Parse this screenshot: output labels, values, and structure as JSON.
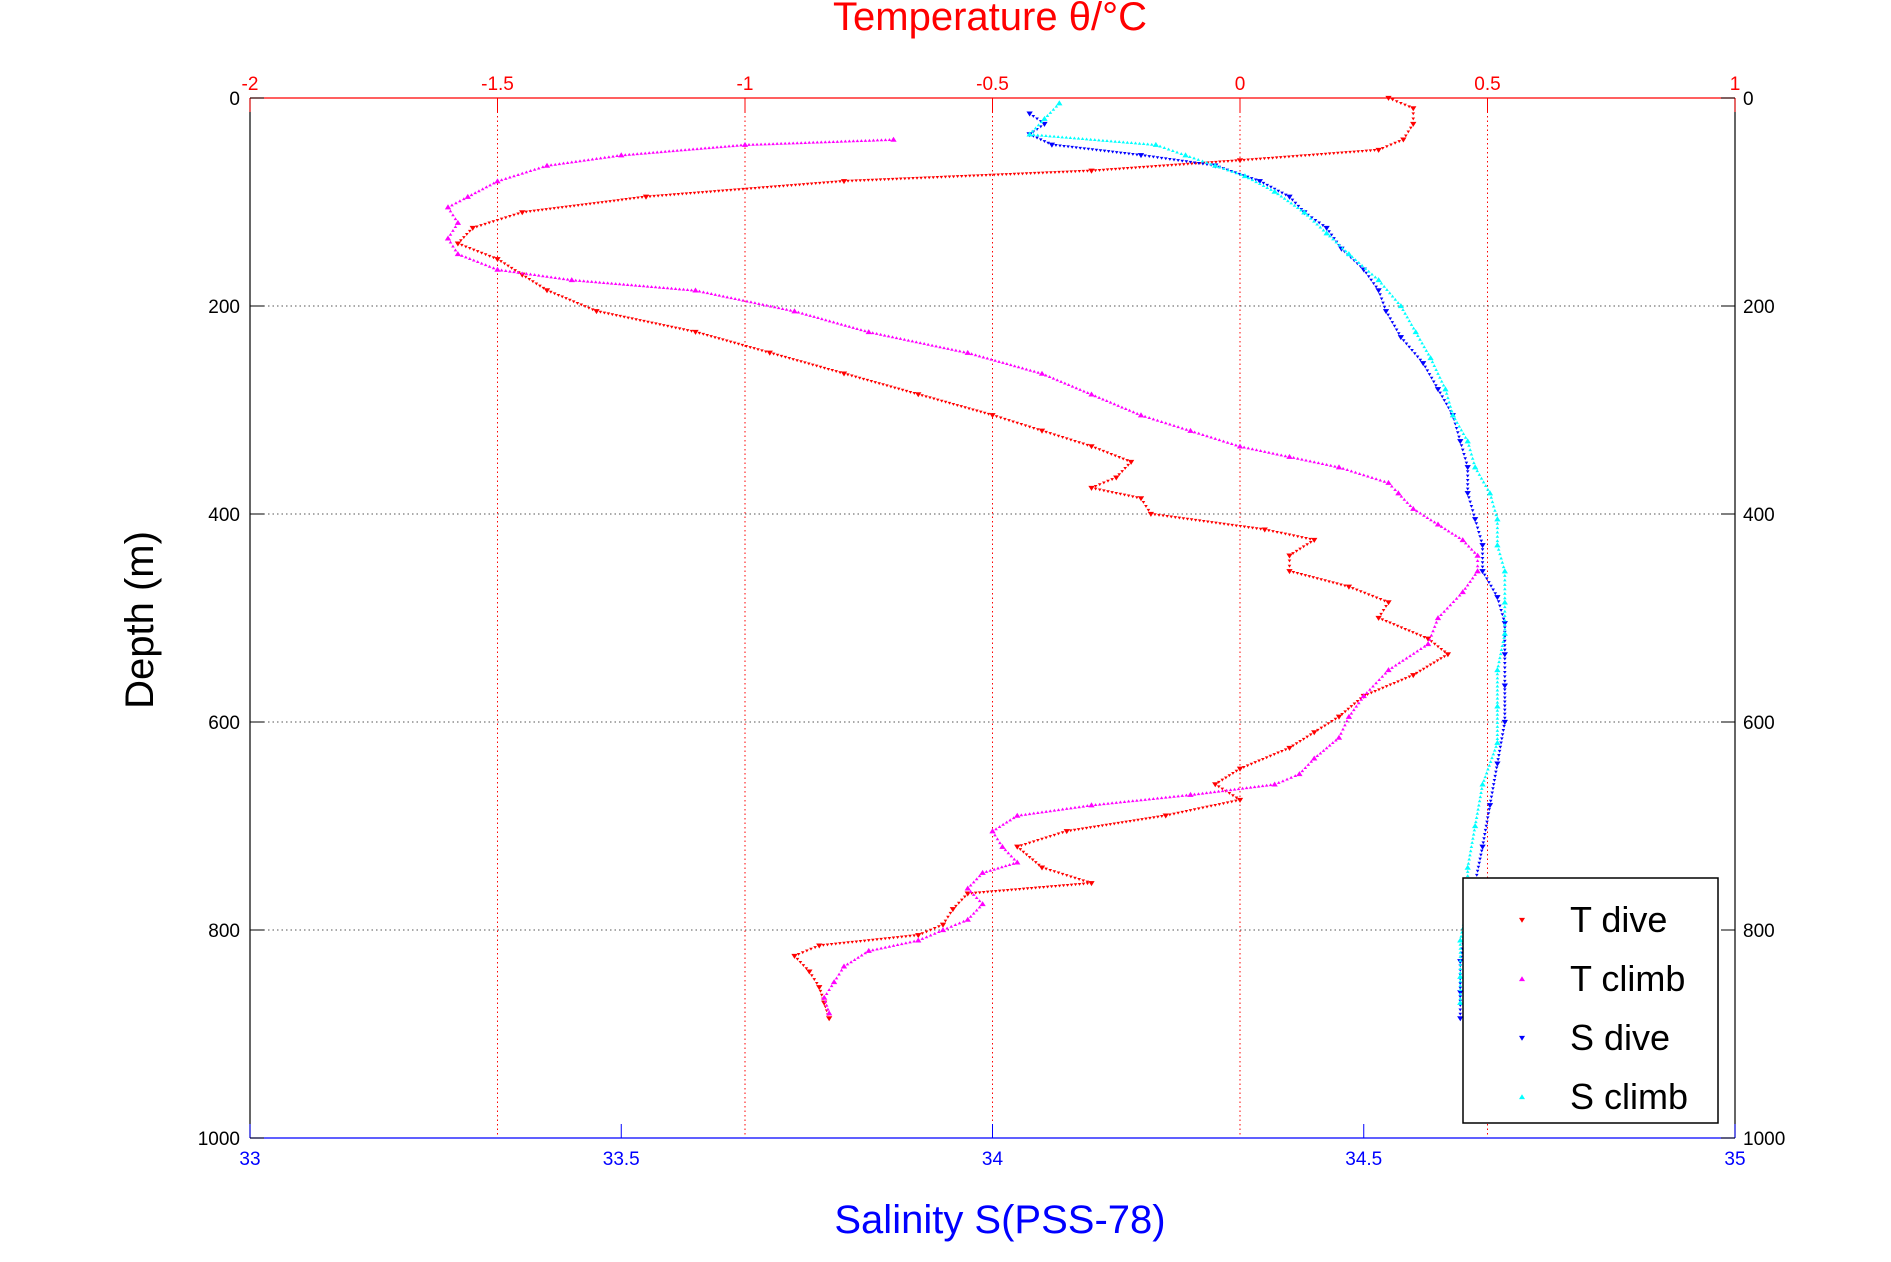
{
  "colors": {
    "temperature_axis": "#ff0000",
    "salinity_axis": "#0000ff",
    "depth_axis": "#000000",
    "t_dive": "#ff0000",
    "t_climb": "#ff00ff",
    "s_dive": "#0000ff",
    "s_climb": "#00ffff",
    "grid": "#c0c0c0"
  },
  "chart_data": {
    "type": "scatter",
    "title": "Temperature θ/°C",
    "xlabel": "Salinity S(PSS-78)",
    "ylabel": "Depth (m)",
    "top_axis": {
      "label": "Temperature θ/°C",
      "range": [
        -2,
        1
      ],
      "ticks": [
        "-2",
        "-1.5",
        "-1",
        "-0.5",
        "0",
        "0.5",
        "1"
      ]
    },
    "bottom_axis": {
      "label": "Salinity S(PSS-78)",
      "range": [
        33,
        35
      ],
      "ticks": [
        "33",
        "33.5",
        "34",
        "34.5",
        "35"
      ]
    },
    "y_axis": {
      "label": "Depth (m)",
      "range": [
        0,
        1000
      ],
      "inverted": true,
      "ticks": [
        "0",
        "200",
        "400",
        "600",
        "800",
        "1000"
      ]
    },
    "grid": true,
    "legend_position": "bottom-right",
    "legend": [
      "T dive",
      "T climb",
      "S dive",
      "S climb"
    ],
    "series": [
      {
        "name": "T dive",
        "axis": "temperature",
        "color": "#ff0000",
        "marker": "triangle-down",
        "points": [
          [
            0.3,
            0
          ],
          [
            0.35,
            10
          ],
          [
            0.35,
            25
          ],
          [
            0.33,
            40
          ],
          [
            0.28,
            50
          ],
          [
            0.0,
            60
          ],
          [
            -0.3,
            70
          ],
          [
            -0.8,
            80
          ],
          [
            -1.2,
            95
          ],
          [
            -1.45,
            110
          ],
          [
            -1.55,
            125
          ],
          [
            -1.58,
            140
          ],
          [
            -1.5,
            155
          ],
          [
            -1.45,
            170
          ],
          [
            -1.4,
            185
          ],
          [
            -1.3,
            205
          ],
          [
            -1.1,
            225
          ],
          [
            -0.95,
            245
          ],
          [
            -0.8,
            265
          ],
          [
            -0.65,
            285
          ],
          [
            -0.5,
            305
          ],
          [
            -0.4,
            320
          ],
          [
            -0.3,
            335
          ],
          [
            -0.22,
            350
          ],
          [
            -0.25,
            365
          ],
          [
            -0.3,
            375
          ],
          [
            -0.2,
            385
          ],
          [
            -0.18,
            400
          ],
          [
            0.05,
            415
          ],
          [
            0.15,
            425
          ],
          [
            0.1,
            440
          ],
          [
            0.1,
            455
          ],
          [
            0.22,
            470
          ],
          [
            0.3,
            485
          ],
          [
            0.28,
            500
          ],
          [
            0.38,
            520
          ],
          [
            0.42,
            535
          ],
          [
            0.35,
            555
          ],
          [
            0.25,
            575
          ],
          [
            0.2,
            595
          ],
          [
            0.15,
            610
          ],
          [
            0.1,
            625
          ],
          [
            0.0,
            645
          ],
          [
            -0.05,
            660
          ],
          [
            0.0,
            675
          ],
          [
            -0.15,
            690
          ],
          [
            -0.35,
            705
          ],
          [
            -0.45,
            720
          ],
          [
            -0.4,
            740
          ],
          [
            -0.3,
            755
          ],
          [
            -0.55,
            765
          ],
          [
            -0.58,
            780
          ],
          [
            -0.6,
            795
          ],
          [
            -0.65,
            805
          ],
          [
            -0.85,
            815
          ],
          [
            -0.9,
            825
          ],
          [
            -0.87,
            840
          ],
          [
            -0.85,
            855
          ],
          [
            -0.84,
            870
          ],
          [
            -0.83,
            885
          ]
        ]
      },
      {
        "name": "T climb",
        "axis": "temperature",
        "color": "#ff00ff",
        "marker": "triangle-up",
        "points": [
          [
            -0.7,
            40
          ],
          [
            -1.0,
            45
          ],
          [
            -1.25,
            55
          ],
          [
            -1.4,
            65
          ],
          [
            -1.5,
            80
          ],
          [
            -1.56,
            95
          ],
          [
            -1.6,
            105
          ],
          [
            -1.58,
            120
          ],
          [
            -1.6,
            135
          ],
          [
            -1.58,
            150
          ],
          [
            -1.5,
            165
          ],
          [
            -1.35,
            175
          ],
          [
            -1.1,
            185
          ],
          [
            -0.9,
            205
          ],
          [
            -0.75,
            225
          ],
          [
            -0.55,
            245
          ],
          [
            -0.4,
            265
          ],
          [
            -0.3,
            285
          ],
          [
            -0.2,
            305
          ],
          [
            -0.1,
            320
          ],
          [
            0.0,
            335
          ],
          [
            0.1,
            345
          ],
          [
            0.2,
            355
          ],
          [
            0.3,
            370
          ],
          [
            0.32,
            380
          ],
          [
            0.35,
            395
          ],
          [
            0.4,
            410
          ],
          [
            0.45,
            425
          ],
          [
            0.48,
            440
          ],
          [
            0.48,
            455
          ],
          [
            0.45,
            475
          ],
          [
            0.4,
            500
          ],
          [
            0.38,
            525
          ],
          [
            0.3,
            550
          ],
          [
            0.25,
            575
          ],
          [
            0.22,
            595
          ],
          [
            0.2,
            615
          ],
          [
            0.15,
            635
          ],
          [
            0.12,
            650
          ],
          [
            0.07,
            660
          ],
          [
            -0.1,
            670
          ],
          [
            -0.3,
            680
          ],
          [
            -0.45,
            690
          ],
          [
            -0.5,
            705
          ],
          [
            -0.48,
            720
          ],
          [
            -0.45,
            735
          ],
          [
            -0.52,
            745
          ],
          [
            -0.55,
            760
          ],
          [
            -0.52,
            775
          ],
          [
            -0.55,
            790
          ],
          [
            -0.6,
            800
          ],
          [
            -0.65,
            810
          ],
          [
            -0.75,
            820
          ],
          [
            -0.8,
            835
          ],
          [
            -0.82,
            850
          ],
          [
            -0.84,
            865
          ],
          [
            -0.83,
            880
          ]
        ]
      },
      {
        "name": "S dive",
        "axis": "salinity",
        "color": "#0000ff",
        "marker": "triangle-down",
        "points": [
          [
            34.05,
            15
          ],
          [
            34.07,
            25
          ],
          [
            34.05,
            35
          ],
          [
            34.08,
            45
          ],
          [
            34.2,
            55
          ],
          [
            34.3,
            65
          ],
          [
            34.36,
            80
          ],
          [
            34.4,
            95
          ],
          [
            34.42,
            110
          ],
          [
            34.45,
            125
          ],
          [
            34.47,
            145
          ],
          [
            34.5,
            165
          ],
          [
            34.52,
            185
          ],
          [
            34.53,
            205
          ],
          [
            34.55,
            230
          ],
          [
            34.58,
            255
          ],
          [
            34.6,
            280
          ],
          [
            34.62,
            305
          ],
          [
            34.63,
            330
          ],
          [
            34.64,
            355
          ],
          [
            34.64,
            380
          ],
          [
            34.65,
            405
          ],
          [
            34.66,
            430
          ],
          [
            34.66,
            455
          ],
          [
            34.68,
            480
          ],
          [
            34.69,
            505
          ],
          [
            34.69,
            535
          ],
          [
            34.69,
            565
          ],
          [
            34.69,
            600
          ],
          [
            34.68,
            640
          ],
          [
            34.67,
            680
          ],
          [
            34.66,
            720
          ],
          [
            34.65,
            755
          ],
          [
            34.64,
            790
          ],
          [
            34.63,
            830
          ],
          [
            34.63,
            860
          ],
          [
            34.63,
            885
          ]
        ]
      },
      {
        "name": "S climb",
        "axis": "salinity",
        "color": "#00ffff",
        "marker": "triangle-up",
        "points": [
          [
            34.09,
            5
          ],
          [
            34.07,
            20
          ],
          [
            34.05,
            35
          ],
          [
            34.22,
            45
          ],
          [
            34.26,
            55
          ],
          [
            34.3,
            65
          ],
          [
            34.34,
            75
          ],
          [
            34.38,
            90
          ],
          [
            34.42,
            110
          ],
          [
            34.45,
            130
          ],
          [
            34.48,
            150
          ],
          [
            34.52,
            175
          ],
          [
            34.55,
            200
          ],
          [
            34.57,
            225
          ],
          [
            34.59,
            250
          ],
          [
            34.61,
            280
          ],
          [
            34.62,
            305
          ],
          [
            34.64,
            330
          ],
          [
            34.65,
            355
          ],
          [
            34.67,
            380
          ],
          [
            34.68,
            405
          ],
          [
            34.68,
            430
          ],
          [
            34.69,
            455
          ],
          [
            34.69,
            485
          ],
          [
            34.69,
            515
          ],
          [
            34.68,
            550
          ],
          [
            34.68,
            585
          ],
          [
            34.68,
            620
          ],
          [
            34.66,
            660
          ],
          [
            34.65,
            700
          ],
          [
            34.64,
            740
          ],
          [
            34.64,
            775
          ],
          [
            34.63,
            810
          ],
          [
            34.63,
            845
          ],
          [
            34.63,
            870
          ]
        ]
      }
    ]
  }
}
